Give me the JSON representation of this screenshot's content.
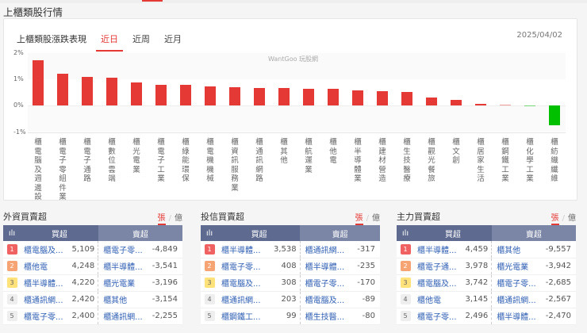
{
  "page": {
    "title": "上櫃類股行情"
  },
  "sector_card": {
    "title": "上櫃類股漲跌表現",
    "tabs": [
      {
        "label": "近日",
        "active": true
      },
      {
        "label": "近周",
        "active": false
      },
      {
        "label": "近月",
        "active": false
      }
    ],
    "date": "2025/04/02",
    "watermark": "WantGoo 玩股網"
  },
  "colors": {
    "up": "#e53935",
    "down": "#00c000",
    "accent": "#e53935",
    "table_header_buy": "#5e6a8f",
    "table_header_sell": "#7b86a6",
    "link": "#2f5fb3"
  },
  "chart_data": {
    "type": "bar",
    "title": "上櫃類股漲跌表現",
    "xlabel": "",
    "ylabel": "",
    "ylim": [
      -1,
      2
    ],
    "yticks": [
      "2%",
      "1%",
      "0%",
      "-1%"
    ],
    "grid": true,
    "categories": [
      "櫃電腦及週邊設",
      "櫃電子零組件業",
      "櫃電子通路",
      "櫃數位雲端",
      "櫃光電業",
      "櫃電子工業",
      "櫃綠能環保",
      "櫃電機機械",
      "櫃資訊服務業",
      "櫃通訊網路",
      "櫃其他",
      "櫃航運業",
      "櫃他電",
      "櫃半導體業",
      "櫃建材營造",
      "櫃生技醫療",
      "櫃觀光餐旅",
      "櫃文創",
      "櫃居家生活",
      "櫃鋼鐵工業",
      "櫃化學工業",
      "櫃紡織纖維"
    ],
    "values": [
      1.73,
      1.22,
      1.1,
      1.07,
      0.89,
      0.8,
      0.79,
      0.73,
      0.71,
      0.68,
      0.67,
      0.65,
      0.63,
      0.57,
      0.56,
      0.51,
      0.31,
      0.21,
      0.06,
      0.02,
      -0.03,
      -0.75
    ]
  },
  "panels": [
    {
      "title": "外資買賣超",
      "unit_on": "張",
      "unit_off": "億",
      "sep": "/",
      "header_icon": "ılı",
      "buy_header": "買超",
      "sell_header": "賣超",
      "rows": [
        {
          "rank": "1",
          "buy_name": "櫃電腦及...",
          "buy_val": "5,109",
          "sell_name": "櫃電子零...",
          "sell_val": "-4,849"
        },
        {
          "rank": "2",
          "buy_name": "櫃他電",
          "buy_val": "4,248",
          "sell_name": "櫃半導體...",
          "sell_val": "-3,541"
        },
        {
          "rank": "3",
          "buy_name": "櫃半導體...",
          "buy_val": "4,220",
          "sell_name": "櫃光電業",
          "sell_val": "-3,196"
        },
        {
          "rank": "4",
          "buy_name": "櫃通訊網...",
          "buy_val": "2,420",
          "sell_name": "櫃其他",
          "sell_val": "-3,154"
        },
        {
          "rank": "5",
          "buy_name": "櫃電子零...",
          "buy_val": "2,400",
          "sell_name": "櫃通訊網...",
          "sell_val": "-2,255"
        }
      ]
    },
    {
      "title": "投信買賣超",
      "unit_on": "張",
      "unit_off": "億",
      "sep": "/",
      "header_icon": "ılı",
      "buy_header": "買超",
      "sell_header": "賣超",
      "rows": [
        {
          "rank": "1",
          "buy_name": "櫃半導體...",
          "buy_val": "3,538",
          "sell_name": "櫃通訊網...",
          "sell_val": "-317"
        },
        {
          "rank": "2",
          "buy_name": "櫃電子零...",
          "buy_val": "408",
          "sell_name": "櫃半導體...",
          "sell_val": "-235"
        },
        {
          "rank": "3",
          "buy_name": "櫃電腦及...",
          "buy_val": "308",
          "sell_name": "櫃電子零...",
          "sell_val": "-170"
        },
        {
          "rank": "4",
          "buy_name": "櫃通訊網...",
          "buy_val": "203",
          "sell_name": "櫃電腦及...",
          "sell_val": "-89"
        },
        {
          "rank": "5",
          "buy_name": "櫃鋼鐵工...",
          "buy_val": "99",
          "sell_name": "櫃生技醫...",
          "sell_val": "-80"
        }
      ]
    },
    {
      "title": "主力買賣超",
      "unit_on": "張",
      "unit_off": "億",
      "sep": "/",
      "header_icon": "ılı",
      "buy_header": "買超",
      "sell_header": "賣超",
      "rows": [
        {
          "rank": "1",
          "buy_name": "櫃半導體...",
          "buy_val": "4,459",
          "sell_name": "櫃其他",
          "sell_val": "-9,557"
        },
        {
          "rank": "2",
          "buy_name": "櫃電子通...",
          "buy_val": "3,978",
          "sell_name": "櫃光電業",
          "sell_val": "-3,942"
        },
        {
          "rank": "3",
          "buy_name": "櫃電腦及...",
          "buy_val": "3,742",
          "sell_name": "櫃電子零...",
          "sell_val": "-2,685"
        },
        {
          "rank": "4",
          "buy_name": "櫃他電",
          "buy_val": "3,145",
          "sell_name": "櫃通訊網...",
          "sell_val": "-2,567"
        },
        {
          "rank": "5",
          "buy_name": "櫃電子零...",
          "buy_val": "2,496",
          "sell_name": "櫃半導體...",
          "sell_val": "-2,470"
        }
      ]
    }
  ]
}
